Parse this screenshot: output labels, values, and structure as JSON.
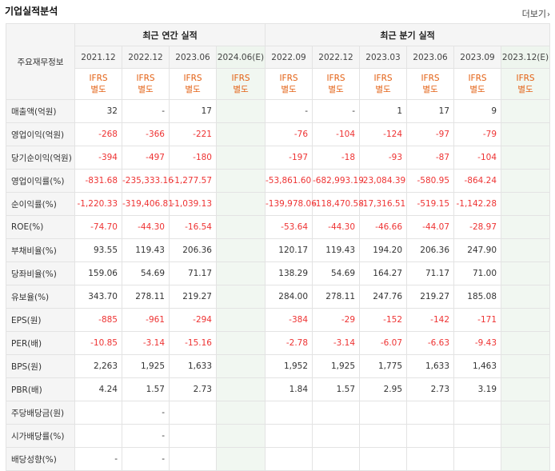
{
  "title": "기업실적분석",
  "more_label": "더보기",
  "corner_label": "주요재무정보",
  "groups": {
    "annual": "최근 연간 실적",
    "quarterly": "최근 분기 실적"
  },
  "periods": [
    "2021.12",
    "2022.12",
    "2023.06",
    "2024.06(E)",
    "2022.09",
    "2022.12",
    "2023.03",
    "2023.06",
    "2023.09",
    "2023.12(E)"
  ],
  "estimate_cols": [
    3,
    9
  ],
  "ifrs": {
    "line1": "IFRS",
    "line2": "별도"
  },
  "rows": [
    {
      "label": "매출액(억원)",
      "values": [
        "32",
        "-",
        "17",
        "",
        "-",
        "-",
        "1",
        "17",
        "9",
        ""
      ]
    },
    {
      "label": "영업이익(억원)",
      "values": [
        "-268",
        "-366",
        "-221",
        "",
        "-76",
        "-104",
        "-124",
        "-97",
        "-79",
        ""
      ]
    },
    {
      "label": "당기순이익(억원)",
      "values": [
        "-394",
        "-497",
        "-180",
        "",
        "-197",
        "-18",
        "-93",
        "-87",
        "-104",
        ""
      ]
    },
    {
      "label": "영업이익률(%)",
      "values": [
        "-831.68",
        "-235,333.16",
        "-1,277.57",
        "",
        "-53,861.60",
        "-682,993.19",
        "-23,084.39",
        "-580.95",
        "-864.24",
        ""
      ]
    },
    {
      "label": "순이익률(%)",
      "values": [
        "-1,220.33",
        "-319,406.81",
        "-1,039.13",
        "",
        "-139,978.06",
        "-118,470.58",
        "-17,316.51",
        "-519.15",
        "-1,142.28",
        ""
      ]
    },
    {
      "label": "ROE(%)",
      "values": [
        "-74.70",
        "-44.30",
        "-16.54",
        "",
        "-53.64",
        "-44.30",
        "-46.66",
        "-44.07",
        "-28.97",
        ""
      ]
    },
    {
      "label": "부채비율(%)",
      "values": [
        "93.55",
        "119.43",
        "206.36",
        "",
        "120.17",
        "119.43",
        "194.20",
        "206.36",
        "247.90",
        ""
      ]
    },
    {
      "label": "당좌비율(%)",
      "values": [
        "159.06",
        "54.69",
        "71.17",
        "",
        "138.29",
        "54.69",
        "164.27",
        "71.17",
        "71.00",
        ""
      ]
    },
    {
      "label": "유보율(%)",
      "values": [
        "343.70",
        "278.11",
        "219.27",
        "",
        "284.00",
        "278.11",
        "247.76",
        "219.27",
        "185.08",
        ""
      ]
    },
    {
      "label": "EPS(원)",
      "values": [
        "-885",
        "-961",
        "-294",
        "",
        "-384",
        "-29",
        "-152",
        "-142",
        "-171",
        ""
      ]
    },
    {
      "label": "PER(배)",
      "values": [
        "-10.85",
        "-3.14",
        "-15.16",
        "",
        "-2.78",
        "-3.14",
        "-6.07",
        "-6.63",
        "-9.43",
        ""
      ]
    },
    {
      "label": "BPS(원)",
      "values": [
        "2,263",
        "1,925",
        "1,633",
        "",
        "1,952",
        "1,925",
        "1,775",
        "1,633",
        "1,463",
        ""
      ]
    },
    {
      "label": "PBR(배)",
      "values": [
        "4.24",
        "1.57",
        "2.73",
        "",
        "1.84",
        "1.57",
        "2.95",
        "2.73",
        "3.19",
        ""
      ]
    },
    {
      "label": "주당배당금(원)",
      "values": [
        "",
        "-",
        "",
        "",
        "",
        "",
        "",
        "",
        "",
        ""
      ]
    },
    {
      "label": "시가배당률(%)",
      "values": [
        "",
        "-",
        "",
        "",
        "",
        "",
        "",
        "",
        "",
        ""
      ]
    },
    {
      "label": "배당성향(%)",
      "values": [
        "-",
        "-",
        "",
        "",
        "",
        "",
        "",
        "",
        "",
        ""
      ]
    }
  ],
  "colors": {
    "negative": "#e33333",
    "ifrs": "#e36013",
    "estimate_bg": "#f1f7f1"
  }
}
